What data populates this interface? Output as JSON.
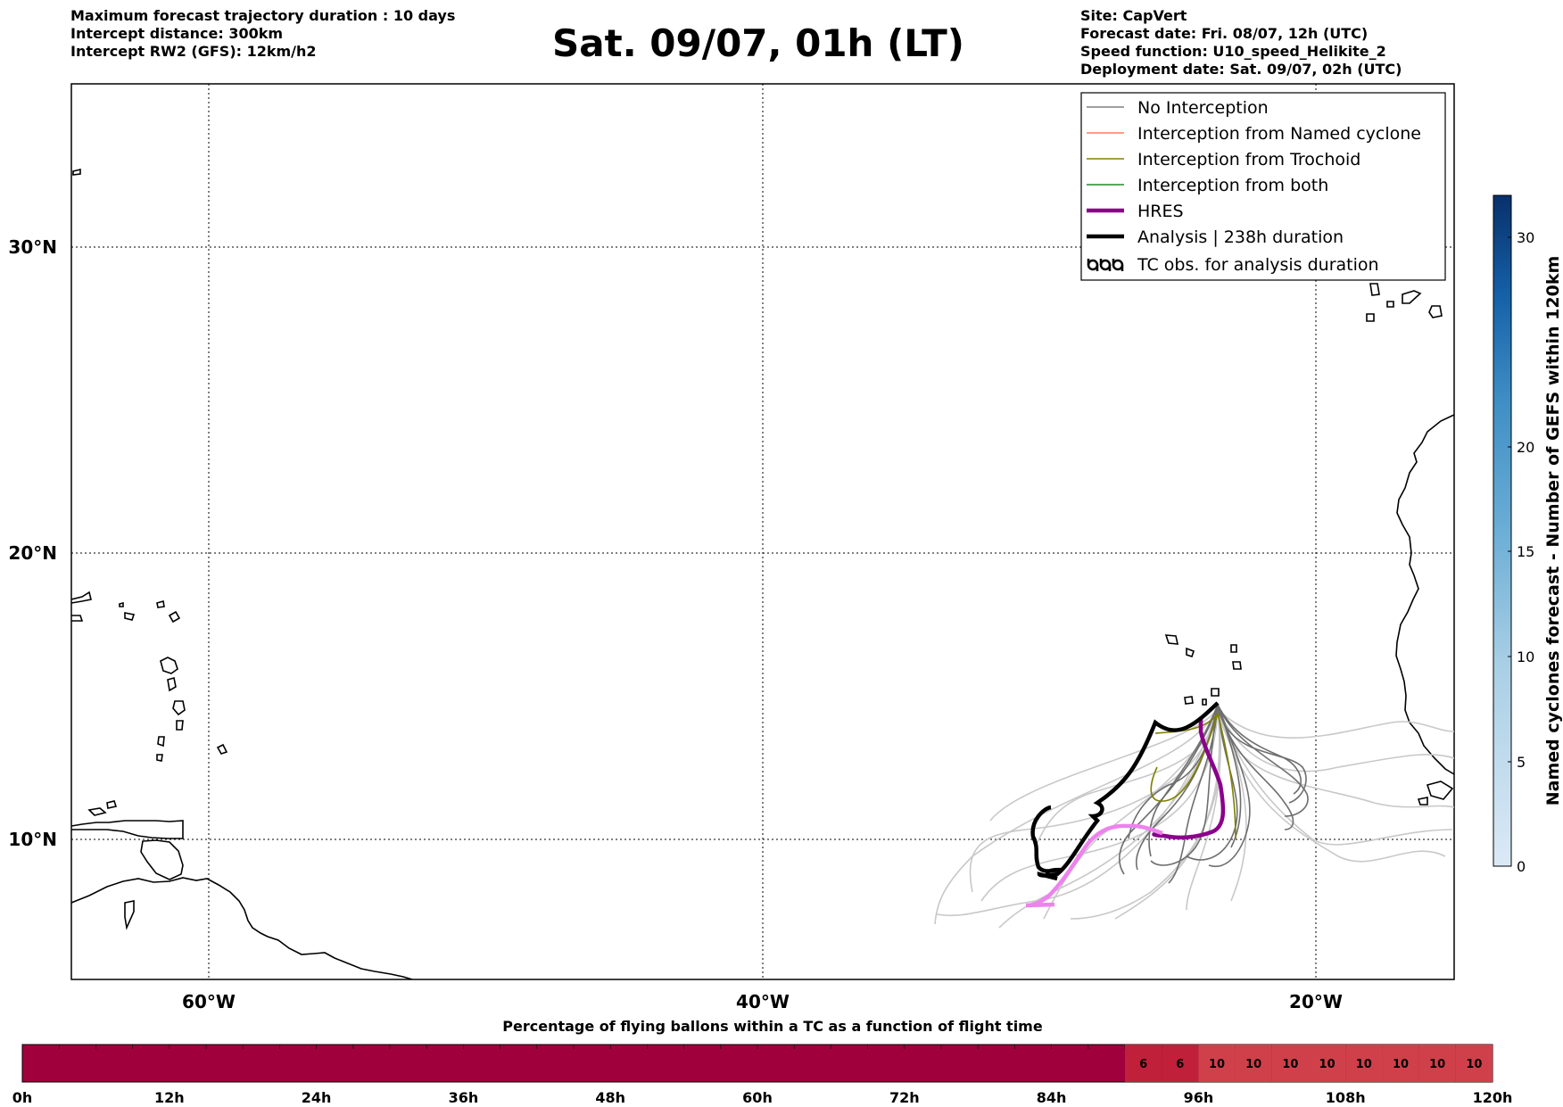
{
  "header": {
    "title": "Sat. 09/07, 01h (LT)",
    "left_lines": [
      "Maximum forecast trajectory duration : 10 days",
      "Intercept distance: 300km",
      "Intercept RW2 (GFS):  12km/h2"
    ],
    "right_lines": [
      "Site: CapVert",
      "Forecast date: Fri. 08/07, 12h (UTC)",
      "Speed function: U10_speed_Helikite_2",
      "Deployment date: Sat. 09/07, 02h (UTC)"
    ]
  },
  "map": {
    "lon_ticks": [
      "60°W",
      "40°W",
      "20°W"
    ],
    "lat_ticks": [
      "30°N",
      "20°N",
      "10°N"
    ],
    "grid": "dotted"
  },
  "legend": {
    "placement": "top-right",
    "items": [
      {
        "label": "No Interception",
        "color": "#808080"
      },
      {
        "label": "Interception from Named cyclone",
        "color": "#ff7f50"
      },
      {
        "label": "Interception from Trochoid",
        "color": "#808000"
      },
      {
        "label": "Interception from both",
        "color": "#228b22"
      },
      {
        "label": "HRES",
        "color": "#8b008b"
      },
      {
        "label": "Analysis | 238h duration",
        "color": "#000000"
      },
      {
        "label": "TC obs. for analysis duration",
        "color": "#000000",
        "icon": "cyclone-symbols-icon"
      }
    ]
  },
  "colorbar": {
    "label": "Named cyclones forecast - Number of GEFS within 120km",
    "ticks": [
      "0",
      "5",
      "10",
      "15",
      "20",
      "30"
    ],
    "colormap": "blues"
  },
  "flight_bar": {
    "title": "Percentage of flying ballons within a TC as a function of flight time",
    "ticks": [
      "0h",
      "12h",
      "24h",
      "36h",
      "48h",
      "60h",
      "72h",
      "84h",
      "96h",
      "108h",
      "120h"
    ],
    "base_color": "#a0003c",
    "values": [
      "6",
      "6",
      "10",
      "10",
      "10",
      "10",
      "10",
      "10",
      "10",
      "10"
    ],
    "value_colors": [
      "#c0203a",
      "#c0203a",
      "#d0404a",
      "#d0404a",
      "#d0404a",
      "#d0404a",
      "#d0404a",
      "#d0404a",
      "#d0404a",
      "#d0404a"
    ]
  }
}
